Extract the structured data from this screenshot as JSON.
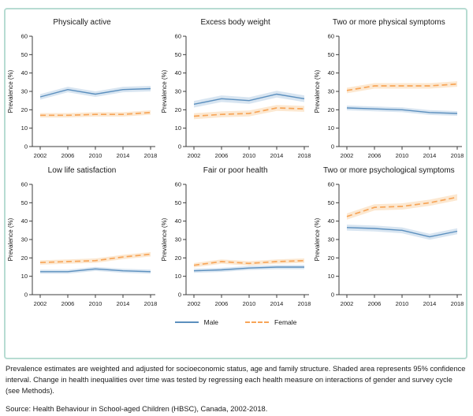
{
  "figure": {
    "caption": "Prevalence estimates are weighted and adjusted for socioeconomic status, age and family structure. Shaded area represents 95% confidence interval. Change in health inequalities over time was tested by regressing each health measure on interactions of gender and survey cycle (see Methods).",
    "source": "Source: Health Behaviour in School-aged Children (HBSC), Canada, 2002-2018."
  },
  "legend": {
    "male_label": "Male",
    "female_label": "Female"
  },
  "colors": {
    "male": "#5b8fbe",
    "female": "#f7a558",
    "male_band": "#c3d7ea",
    "female_band": "#fbdcb8",
    "axis": "#3c3c3c",
    "frame": "#b7dcd2"
  },
  "axes": {
    "ylabel": "Prevalence (%)",
    "ylim": [
      0,
      60
    ],
    "yticks": [
      0,
      10,
      20,
      30,
      40,
      50,
      60
    ],
    "xticks": [
      2002,
      2006,
      2010,
      2014,
      2018
    ],
    "grid": false,
    "legend_position": "bottom-center"
  },
  "chart_data": [
    {
      "type": "line",
      "title": "Physically active",
      "x": [
        2002,
        2006,
        2010,
        2014,
        2018
      ],
      "ylabel": "Prevalence (%)",
      "ylim": [
        0,
        60
      ],
      "series": [
        {
          "name": "Male",
          "values": [
            27,
            31,
            28.5,
            31,
            31.5
          ],
          "ci": 1.5
        },
        {
          "name": "Female",
          "values": [
            17,
            17,
            17.5,
            17.5,
            18.5
          ],
          "ci": 1.2
        }
      ]
    },
    {
      "type": "line",
      "title": "Excess body weight",
      "x": [
        2002,
        2006,
        2010,
        2014,
        2018
      ],
      "ylabel": "Prevalence (%)",
      "ylim": [
        0,
        60
      ],
      "series": [
        {
          "name": "Male",
          "values": [
            23,
            26,
            25,
            28.5,
            26
          ],
          "ci": 1.8
        },
        {
          "name": "Female",
          "values": [
            16.5,
            17.5,
            18,
            21,
            20.5
          ],
          "ci": 1.6
        }
      ]
    },
    {
      "type": "line",
      "title": "Two or more physical symptoms",
      "x": [
        2002,
        2006,
        2010,
        2014,
        2018
      ],
      "ylabel": "Prevalence (%)",
      "ylim": [
        0,
        60
      ],
      "series": [
        {
          "name": "Male",
          "values": [
            21,
            20.5,
            20,
            18.5,
            18
          ],
          "ci": 1.3
        },
        {
          "name": "Female",
          "values": [
            30.5,
            33,
            33,
            33,
            34
          ],
          "ci": 1.5
        }
      ]
    },
    {
      "type": "line",
      "title": "Low life satisfaction",
      "x": [
        2002,
        2006,
        2010,
        2014,
        2018
      ],
      "ylabel": "Prevalence (%)",
      "ylim": [
        0,
        60
      ],
      "series": [
        {
          "name": "Male",
          "values": [
            12.5,
            12.5,
            14,
            13,
            12.5
          ],
          "ci": 1.1
        },
        {
          "name": "Female",
          "values": [
            17.5,
            18,
            18.5,
            20.5,
            22
          ],
          "ci": 1.2
        }
      ]
    },
    {
      "type": "line",
      "title": "Fair or poor health",
      "x": [
        2002,
        2006,
        2010,
        2014,
        2018
      ],
      "ylabel": "Prevalence (%)",
      "ylim": [
        0,
        60
      ],
      "series": [
        {
          "name": "Male",
          "values": [
            13,
            13.5,
            14.5,
            15,
            15
          ],
          "ci": 1.1
        },
        {
          "name": "Female",
          "values": [
            16,
            18,
            17,
            18,
            18.5
          ],
          "ci": 1.2
        }
      ]
    },
    {
      "type": "line",
      "title": "Two or more psychological symptoms",
      "x": [
        2002,
        2006,
        2010,
        2014,
        2018
      ],
      "ylabel": "Prevalence (%)",
      "ylim": [
        0,
        60
      ],
      "series": [
        {
          "name": "Male",
          "values": [
            36.5,
            36,
            35,
            31.5,
            34.5
          ],
          "ci": 1.6
        },
        {
          "name": "Female",
          "values": [
            42.5,
            47.5,
            48,
            50,
            53
          ],
          "ci": 1.7
        }
      ]
    }
  ]
}
